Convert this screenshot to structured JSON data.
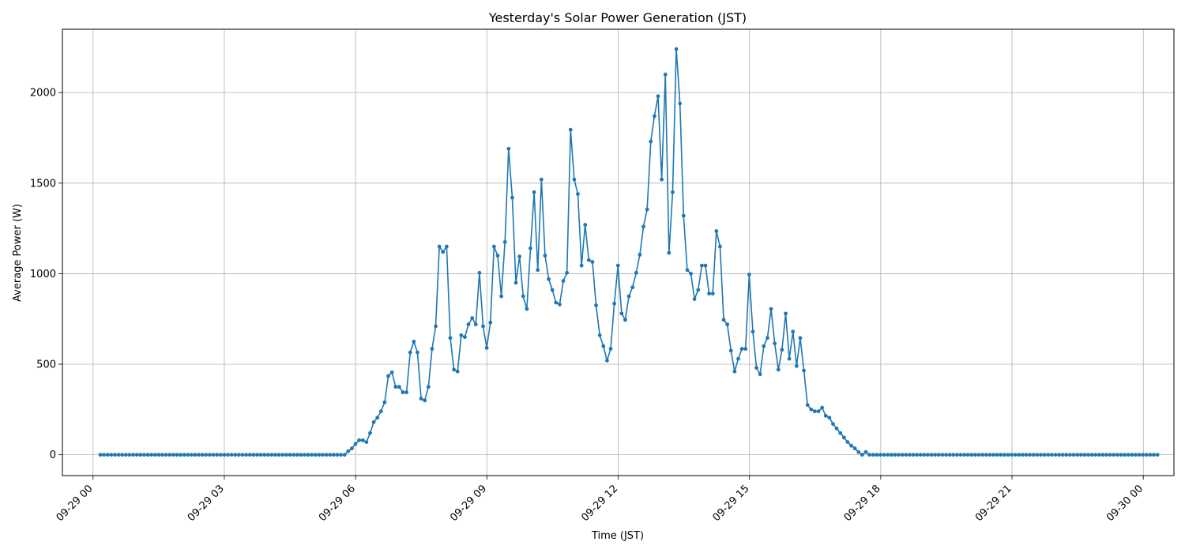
{
  "chart_data": {
    "type": "line",
    "title": "Yesterday's Solar Power Generation (JST)",
    "xlabel": "Time (JST)",
    "ylabel": "Average Power (W)",
    "x_unit": "hours since 09-29 00:00",
    "xlim": [
      -0.7,
      24.7
    ],
    "ylim": [
      -115,
      2350
    ],
    "x_ticks": [
      0,
      3,
      6,
      9,
      12,
      15,
      18,
      21,
      24
    ],
    "x_tick_labels": [
      "09-29 00",
      "09-29 03",
      "09-29 06",
      "09-29 09",
      "09-29 12",
      "09-29 15",
      "09-29 18",
      "09-29 21",
      "09-30 00"
    ],
    "y_ticks": [
      0,
      500,
      1000,
      1500,
      2000
    ],
    "y_tick_labels": [
      "0",
      "500",
      "1000",
      "1500",
      "2000"
    ],
    "grid": true,
    "line_color": "#1f77b4",
    "marker": "circle",
    "x_start": 0.1667,
    "x_step": 0.0833,
    "series": [
      {
        "name": "Average Power (W)",
        "values": [
          0,
          0,
          0,
          0,
          0,
          0,
          0,
          0,
          0,
          0,
          0,
          0,
          0,
          0,
          0,
          0,
          0,
          0,
          0,
          0,
          0,
          0,
          0,
          0,
          0,
          0,
          0,
          0,
          0,
          0,
          0,
          0,
          0,
          0,
          0,
          0,
          0,
          0,
          0,
          0,
          0,
          0,
          0,
          0,
          0,
          0,
          0,
          0,
          0,
          0,
          0,
          0,
          0,
          0,
          0,
          0,
          0,
          0,
          0,
          0,
          0,
          0,
          0,
          0,
          0,
          0,
          0,
          0,
          20,
          35,
          60,
          80,
          80,
          70,
          120,
          180,
          205,
          240,
          290,
          435,
          455,
          375,
          375,
          345,
          345,
          565,
          625,
          565,
          310,
          300,
          375,
          585,
          710,
          1150,
          1120,
          1150,
          645,
          470,
          460,
          660,
          650,
          720,
          755,
          720,
          1005,
          710,
          590,
          730,
          1150,
          1100,
          875,
          1175,
          1690,
          1420,
          950,
          1095,
          875,
          805,
          1140,
          1450,
          1020,
          1520,
          1100,
          970,
          910,
          840,
          830,
          960,
          1005,
          1795,
          1520,
          1440,
          1045,
          1270,
          1075,
          1065,
          825,
          660,
          600,
          520,
          585,
          835,
          1045,
          780,
          745,
          875,
          925,
          1005,
          1105,
          1260,
          1355,
          1730,
          1870,
          1980,
          1520,
          2100,
          1115,
          1450,
          2240,
          1940,
          1320,
          1020,
          1000,
          860,
          910,
          1045,
          1045,
          890,
          890,
          1235,
          1150,
          745,
          720,
          575,
          460,
          530,
          585,
          585,
          995,
          680,
          480,
          445,
          600,
          645,
          805,
          615,
          470,
          580,
          780,
          530,
          680,
          490,
          645,
          465,
          275,
          250,
          240,
          240,
          260,
          215,
          205,
          170,
          145,
          120,
          95,
          70,
          50,
          35,
          15,
          0,
          15,
          0,
          0,
          0,
          0,
          0,
          0,
          0,
          0,
          0,
          0,
          0,
          0,
          0,
          0,
          0,
          0,
          0,
          0,
          0,
          0,
          0,
          0,
          0,
          0,
          0,
          0,
          0,
          0,
          0,
          0,
          0,
          0,
          0,
          0,
          0,
          0,
          0,
          0,
          0,
          0,
          0,
          0,
          0,
          0,
          0,
          0,
          0,
          0,
          0,
          0,
          0,
          0,
          0,
          0,
          0,
          0,
          0,
          0,
          0,
          0,
          0,
          0,
          0,
          0,
          0,
          0,
          0,
          0,
          0,
          0,
          0,
          0,
          0,
          0,
          0,
          0,
          0,
          0,
          0,
          0
        ]
      }
    ]
  }
}
